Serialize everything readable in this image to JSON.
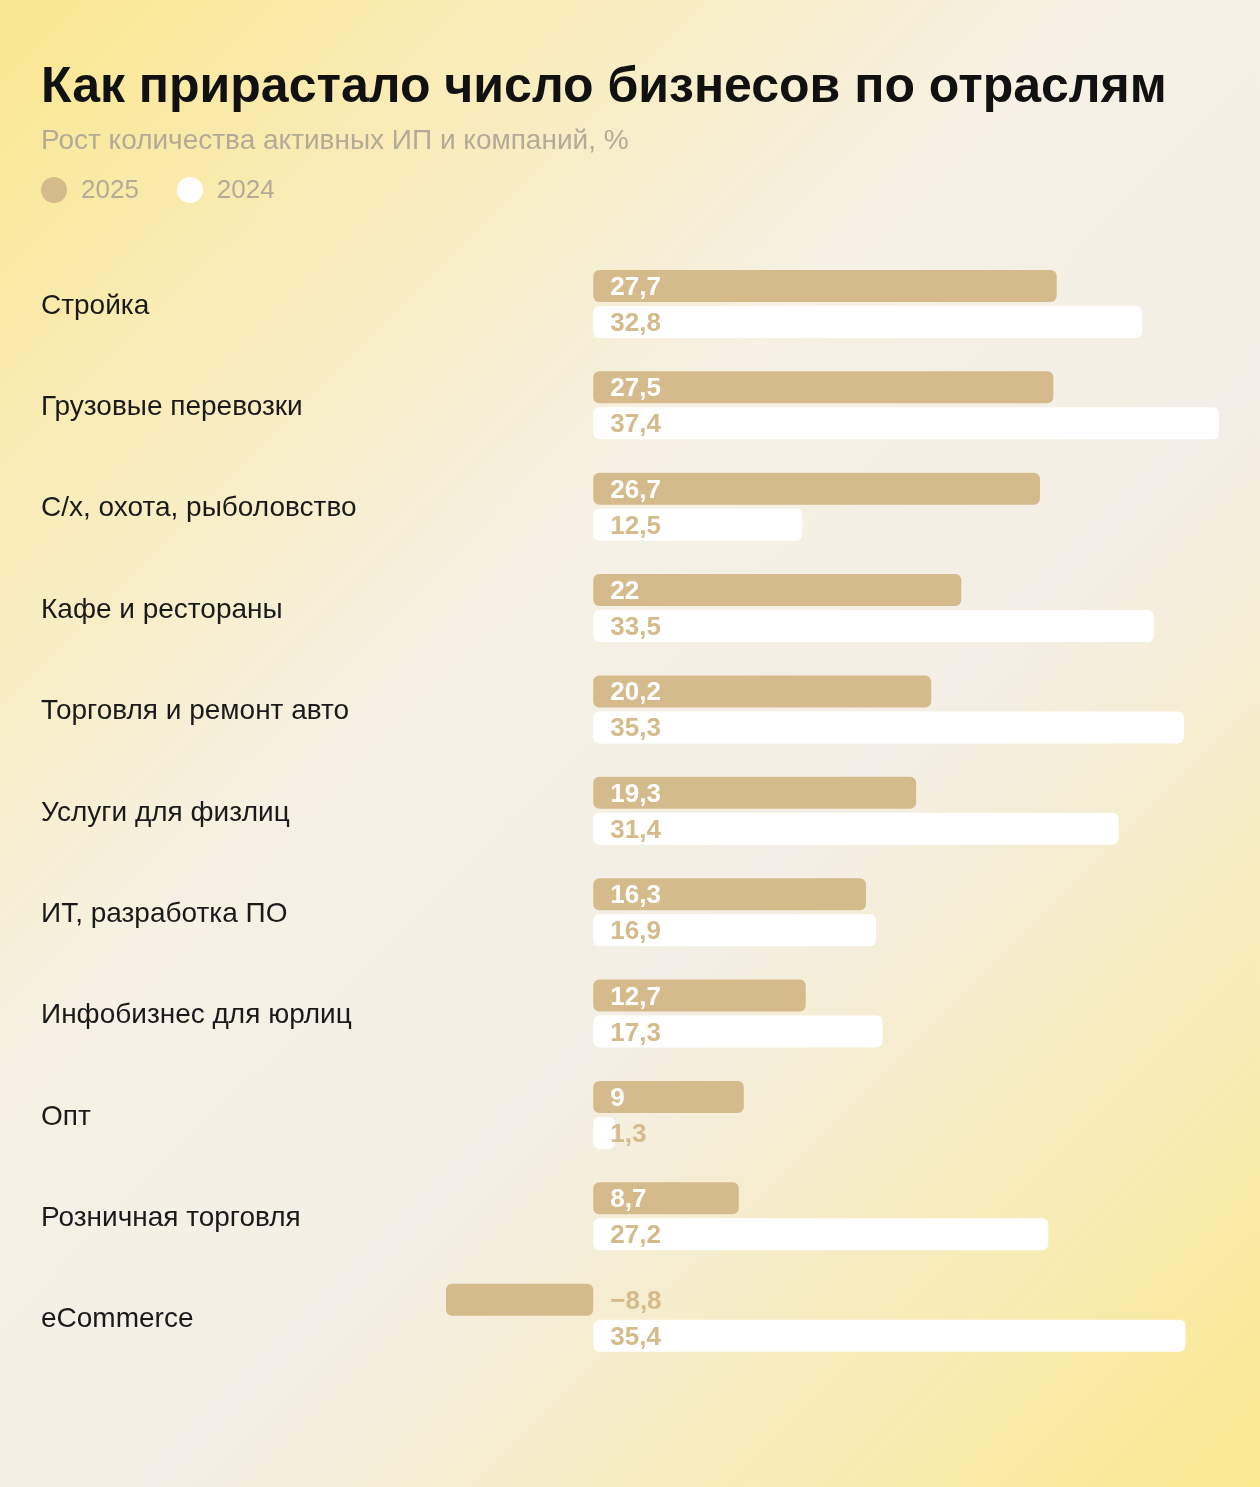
{
  "chart_data": {
    "type": "bar",
    "orientation": "horizontal",
    "title": "Как прирастало число бизнесов по отраслям",
    "subtitle": "Рост количества активных ИП и компаний, %",
    "legend": "top left",
    "categories": [
      "Стройка",
      "Грузовые перевозки",
      "С/х, охота, рыболовство",
      "Кафе и рестораны",
      "Торговля и ремонт авто",
      "Услуги для физлиц",
      "ИТ, разработка ПО",
      "Инфобизнес для юрлиц",
      "Опт",
      "Розничная торговля",
      "eCommerce"
    ],
    "series": [
      {
        "name": "2025",
        "color": "#d5bb8c",
        "values": [
          27.7,
          27.5,
          26.7,
          22,
          20.2,
          19.3,
          16.3,
          12.7,
          9,
          8.7,
          -8.8
        ],
        "value_labels": [
          "27,7",
          "27,5",
          "26,7",
          "22",
          "20,2",
          "19,3",
          "16,3",
          "12,7",
          "9",
          "8,7",
          "−8,8"
        ]
      },
      {
        "name": "2024",
        "color": "#ffffff",
        "values": [
          32.8,
          37.4,
          12.5,
          33.5,
          35.3,
          31.4,
          16.9,
          17.3,
          1.3,
          27.2,
          35.4
        ],
        "value_labels": [
          "32,8",
          "37,4",
          "12,5",
          "33,5",
          "35,3",
          "31,4",
          "16,9",
          "17,3",
          "1,3",
          "27,2",
          "35,4"
        ]
      }
    ]
  }
}
